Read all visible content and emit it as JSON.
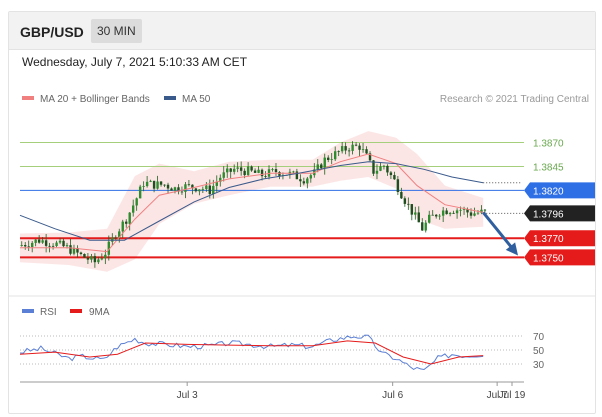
{
  "header": {
    "pair": "GBP/USD",
    "timeframe": "30 MIN"
  },
  "date_label": "Wednesday, July 7, 2021 5:10:33 AM CET",
  "legend": {
    "ma20": "MA 20 + Bollinger Bands",
    "ma50": "MA 50",
    "credit": "Research © 2021 Trading Central",
    "rsi": "RSI",
    "rsi_ma": "9MA"
  },
  "colors": {
    "ma20": "#f08080",
    "ma50": "#3a5a8c",
    "bands": "#fbdcdc",
    "green_level": "#a5cf7a",
    "blue_level": "#2f6fe6",
    "red_level": "#e51b1b",
    "current": "#222222",
    "arrow": "#2f5f9e",
    "candle": "#1e7a1e",
    "rsi": "#5b7fd4",
    "rsi_ma": "#e51b1b"
  },
  "chart_data": [
    {
      "type": "candlestick",
      "y_range": [
        1.3718,
        1.3904
      ],
      "levels": [
        {
          "value": 1.387,
          "label": "1.3870",
          "style": "green"
        },
        {
          "value": 1.3845,
          "label": "1.3845",
          "style": "green"
        },
        {
          "value": 1.382,
          "label": "1.3820",
          "style": "blue"
        },
        {
          "value": 1.3796,
          "label": "1.3796",
          "style": "current"
        },
        {
          "value": 1.377,
          "label": "1.3770",
          "style": "red"
        },
        {
          "value": 1.375,
          "label": "1.3750",
          "style": "red"
        }
      ],
      "x_ticks": [
        "Jul 3",
        "Jul 6",
        "Jul 7",
        "Jul 19"
      ],
      "price_path": [
        [
          0,
          1.3762
        ],
        [
          6,
          1.3768
        ],
        [
          10,
          1.3765
        ],
        [
          14,
          1.376
        ],
        [
          18,
          1.3752
        ],
        [
          22,
          1.3745
        ],
        [
          25,
          1.3755
        ],
        [
          28,
          1.3775
        ],
        [
          31,
          1.379
        ],
        [
          34,
          1.3812
        ],
        [
          36,
          1.3828
        ],
        [
          39,
          1.3826
        ],
        [
          42,
          1.3826
        ],
        [
          45,
          1.3822
        ],
        [
          48,
          1.3824
        ],
        [
          52,
          1.3823
        ],
        [
          55,
          1.382
        ],
        [
          58,
          1.3834
        ],
        [
          62,
          1.3842
        ],
        [
          66,
          1.384
        ],
        [
          70,
          1.3836
        ],
        [
          74,
          1.384
        ],
        [
          78,
          1.3837
        ],
        [
          82,
          1.3832
        ],
        [
          85,
          1.3838
        ],
        [
          88,
          1.3852
        ],
        [
          92,
          1.386
        ],
        [
          95,
          1.3865
        ],
        [
          98,
          1.3866
        ],
        [
          100,
          1.3855
        ],
        [
          102,
          1.384
        ],
        [
          105,
          1.3846
        ],
        [
          108,
          1.383
        ],
        [
          111,
          1.381
        ],
        [
          114,
          1.3792
        ],
        [
          116,
          1.378
        ],
        [
          118,
          1.379
        ],
        [
          121,
          1.3798
        ],
        [
          124,
          1.38
        ],
        [
          127,
          1.38
        ],
        [
          130,
          1.3796
        ],
        [
          133,
          1.3797
        ]
      ],
      "ma20_path": [
        [
          0,
          1.376
        ],
        [
          14,
          1.376
        ],
        [
          25,
          1.3756
        ],
        [
          33,
          1.379
        ],
        [
          40,
          1.3815
        ],
        [
          50,
          1.3823
        ],
        [
          60,
          1.3832
        ],
        [
          72,
          1.3838
        ],
        [
          84,
          1.3838
        ],
        [
          92,
          1.385
        ],
        [
          100,
          1.3858
        ],
        [
          108,
          1.3848
        ],
        [
          114,
          1.3825
        ],
        [
          122,
          1.3805
        ],
        [
          133,
          1.3797
        ]
      ],
      "bollinger_upper": [
        [
          0,
          1.3775
        ],
        [
          14,
          1.3776
        ],
        [
          25,
          1.378
        ],
        [
          33,
          1.3835
        ],
        [
          40,
          1.3848
        ],
        [
          50,
          1.384
        ],
        [
          60,
          1.385
        ],
        [
          72,
          1.3852
        ],
        [
          84,
          1.3852
        ],
        [
          92,
          1.387
        ],
        [
          100,
          1.3882
        ],
        [
          108,
          1.3875
        ],
        [
          114,
          1.3858
        ],
        [
          122,
          1.3825
        ],
        [
          133,
          1.3812
        ]
      ],
      "bollinger_lower": [
        [
          0,
          1.3745
        ],
        [
          14,
          1.3742
        ],
        [
          25,
          1.3735
        ],
        [
          33,
          1.3748
        ],
        [
          40,
          1.3785
        ],
        [
          50,
          1.3806
        ],
        [
          60,
          1.3815
        ],
        [
          72,
          1.3824
        ],
        [
          84,
          1.3824
        ],
        [
          92,
          1.383
        ],
        [
          100,
          1.3834
        ],
        [
          108,
          1.3822
        ],
        [
          114,
          1.379
        ],
        [
          122,
          1.378
        ],
        [
          133,
          1.3782
        ]
      ],
      "ma50_path": [
        [
          0,
          1.3794
        ],
        [
          10,
          1.378
        ],
        [
          20,
          1.3768
        ],
        [
          30,
          1.3768
        ],
        [
          40,
          1.3788
        ],
        [
          50,
          1.3808
        ],
        [
          60,
          1.3823
        ],
        [
          70,
          1.3832
        ],
        [
          80,
          1.3838
        ],
        [
          92,
          1.3846
        ],
        [
          100,
          1.385
        ],
        [
          108,
          1.3848
        ],
        [
          116,
          1.3842
        ],
        [
          124,
          1.3834
        ],
        [
          133,
          1.3828
        ]
      ],
      "forecast_arrow": [
        [
          133,
          1.3797
        ],
        [
          145,
          1.3752
        ]
      ]
    },
    {
      "type": "line",
      "y_ticks": [
        70,
        50,
        30
      ],
      "y_range": [
        10,
        90
      ],
      "rsi_path": [
        [
          0,
          47
        ],
        [
          6,
          52
        ],
        [
          10,
          45
        ],
        [
          14,
          38
        ],
        [
          18,
          41
        ],
        [
          24,
          36
        ],
        [
          28,
          55
        ],
        [
          33,
          66
        ],
        [
          36,
          60
        ],
        [
          42,
          58
        ],
        [
          48,
          55
        ],
        [
          55,
          56
        ],
        [
          60,
          60
        ],
        [
          66,
          58
        ],
        [
          72,
          55
        ],
        [
          78,
          57
        ],
        [
          84,
          55
        ],
        [
          90,
          65
        ],
        [
          96,
          70
        ],
        [
          100,
          68
        ],
        [
          104,
          45
        ],
        [
          108,
          38
        ],
        [
          112,
          26
        ],
        [
          116,
          20
        ],
        [
          120,
          38
        ],
        [
          124,
          44
        ],
        [
          128,
          42
        ],
        [
          133,
          44
        ]
      ],
      "rsi_ma_path": [
        [
          0,
          44
        ],
        [
          10,
          47
        ],
        [
          20,
          40
        ],
        [
          28,
          44
        ],
        [
          36,
          60
        ],
        [
          48,
          58
        ],
        [
          60,
          57
        ],
        [
          72,
          56
        ],
        [
          84,
          56
        ],
        [
          94,
          63
        ],
        [
          102,
          60
        ],
        [
          110,
          40
        ],
        [
          118,
          30
        ],
        [
          126,
          40
        ],
        [
          133,
          42
        ]
      ]
    }
  ]
}
